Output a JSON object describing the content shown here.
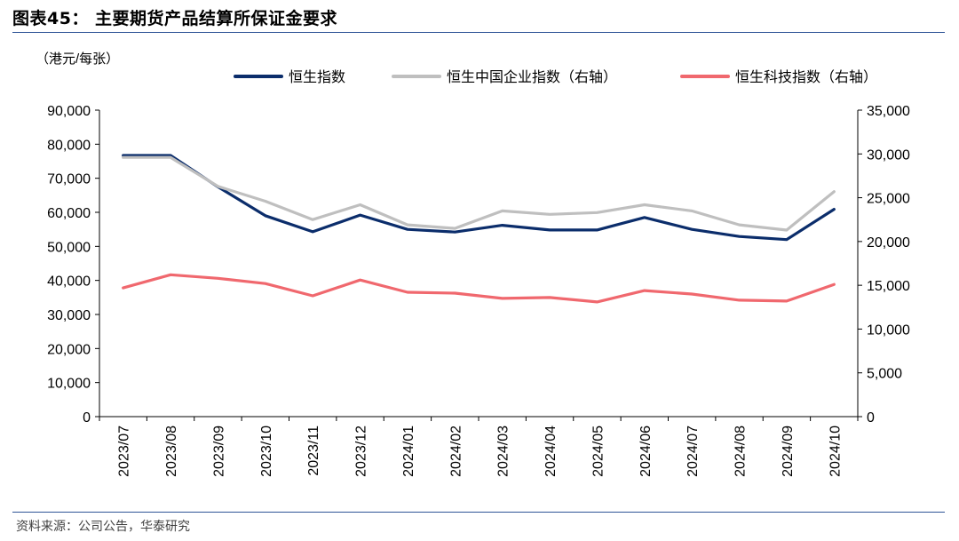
{
  "header": {
    "title": "图表45：  主要期货产品结算所保证金要求"
  },
  "footer": {
    "source": "资料来源：公司公告，华泰研究"
  },
  "chart_data": {
    "type": "line",
    "unit_label": "（港元/每张）",
    "categories": [
      "2023/07",
      "2023/08",
      "2023/09",
      "2023/10",
      "2023/11",
      "2023/12",
      "2024/01",
      "2024/02",
      "2024/03",
      "2024/04",
      "2024/05",
      "2024/06",
      "2024/07",
      "2024/08",
      "2024/09",
      "2024/10"
    ],
    "left_axis": {
      "min": 0,
      "max": 90000,
      "step": 10000,
      "ticks": [
        "0",
        "10,000",
        "20,000",
        "30,000",
        "40,000",
        "50,000",
        "60,000",
        "70,000",
        "80,000",
        "90,000"
      ]
    },
    "right_axis": {
      "min": 0,
      "max": 35000,
      "step": 5000,
      "ticks": [
        "0",
        "5,000",
        "10,000",
        "15,000",
        "20,000",
        "25,000",
        "30,000",
        "35,000"
      ]
    },
    "series": [
      {
        "name": "恒生指数",
        "axis": "left",
        "color": "#0b2d6b",
        "values": [
          76700,
          76700,
          67500,
          59000,
          54300,
          59200,
          55000,
          54200,
          56200,
          54800,
          54800,
          58500,
          55000,
          52900,
          52000,
          60900
        ]
      },
      {
        "name": "恒生中国企业指数（右轴）",
        "axis": "right",
        "color": "#bfbfbf",
        "values": [
          29600,
          29600,
          26300,
          24600,
          22500,
          24200,
          21900,
          21500,
          23500,
          23100,
          23300,
          24200,
          23500,
          21900,
          21300,
          25700
        ]
      },
      {
        "name": "恒生科技指数（右轴）",
        "axis": "right",
        "color": "#f0686e",
        "values": [
          14700,
          16200,
          15800,
          15200,
          13800,
          15600,
          14200,
          14100,
          13500,
          13600,
          13100,
          14400,
          14000,
          13300,
          13200,
          15100
        ]
      }
    ],
    "legend_position": "top",
    "grid": false
  }
}
